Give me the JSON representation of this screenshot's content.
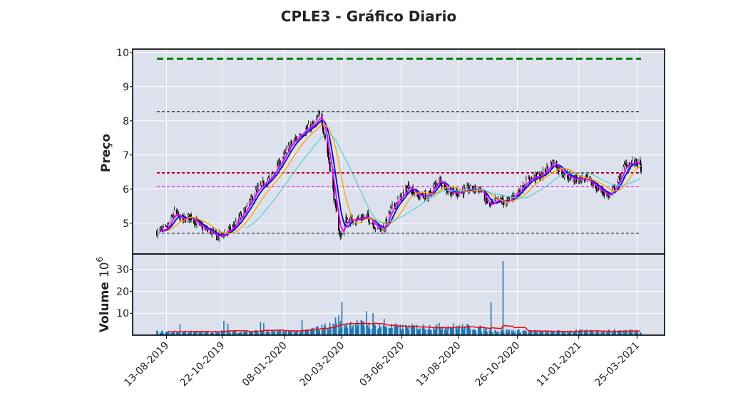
{
  "chart_data": [
    {
      "type": "candlestick",
      "title": "CPLE3 - Gráfico Diario",
      "ylabel": "Preço",
      "ylim": [
        4.1,
        10.1
      ],
      "yticks": [
        5,
        6,
        7,
        8,
        9,
        10
      ],
      "grid": true,
      "x_date_range": [
        "2019-08-01",
        "2021-03-30"
      ],
      "xtick_labels": [
        "13-08-2019",
        "22-10-2019",
        "08-01-2020",
        "20-03-2020",
        "03-06-2020",
        "13-08-2020",
        "26-10-2020",
        "11-01-2021",
        "25-03-2021"
      ],
      "xtick_dates": [
        "2019-08-13",
        "2019-10-22",
        "2020-01-08",
        "2020-03-20",
        "2020-06-03",
        "2020-08-13",
        "2020-10-26",
        "2021-01-11",
        "2021-03-25"
      ],
      "price_path": [
        [
          "2019-08-01",
          4.75
        ],
        [
          "2019-08-13",
          4.85
        ],
        [
          "2019-08-23",
          5.3
        ],
        [
          "2019-09-03",
          5.1
        ],
        [
          "2019-09-12",
          5.2
        ],
        [
          "2019-09-25",
          4.9
        ],
        [
          "2019-10-08",
          4.75
        ],
        [
          "2019-10-15",
          4.6
        ],
        [
          "2019-10-25",
          4.7
        ],
        [
          "2019-11-05",
          4.9
        ],
        [
          "2019-11-20",
          5.4
        ],
        [
          "2019-12-05",
          6.0
        ],
        [
          "2019-12-20",
          6.3
        ],
        [
          "2020-01-03",
          6.8
        ],
        [
          "2020-01-15",
          7.3
        ],
        [
          "2020-02-01",
          7.7
        ],
        [
          "2020-02-14",
          7.9
        ],
        [
          "2020-02-22",
          8.2
        ],
        [
          "2020-02-28",
          7.5
        ],
        [
          "2020-03-06",
          6.5
        ],
        [
          "2020-03-12",
          5.4
        ],
        [
          "2020-03-18",
          4.6
        ],
        [
          "2020-03-25",
          5.1
        ],
        [
          "2020-04-05",
          5.1
        ],
        [
          "2020-04-20",
          5.2
        ],
        [
          "2020-05-01",
          4.9
        ],
        [
          "2020-05-12",
          4.85
        ],
        [
          "2020-05-20",
          5.4
        ],
        [
          "2020-06-03",
          5.8
        ],
        [
          "2020-06-12",
          6.1
        ],
        [
          "2020-06-22",
          5.8
        ],
        [
          "2020-07-06",
          5.8
        ],
        [
          "2020-07-20",
          6.3
        ],
        [
          "2020-08-01",
          5.9
        ],
        [
          "2020-08-13",
          5.9
        ],
        [
          "2020-08-25",
          6.0
        ],
        [
          "2020-09-10",
          6.0
        ],
        [
          "2020-09-20",
          5.5
        ],
        [
          "2020-10-01",
          5.7
        ],
        [
          "2020-10-12",
          5.6
        ],
        [
          "2020-10-26",
          5.9
        ],
        [
          "2020-11-10",
          6.3
        ],
        [
          "2020-11-25",
          6.4
        ],
        [
          "2020-12-10",
          6.8
        ],
        [
          "2020-12-20",
          6.5
        ],
        [
          "2021-01-04",
          6.3
        ],
        [
          "2021-01-20",
          6.3
        ],
        [
          "2021-02-05",
          6.0
        ],
        [
          "2021-02-18",
          5.8
        ],
        [
          "2021-03-01",
          6.2
        ],
        [
          "2021-03-10",
          6.7
        ],
        [
          "2021-03-25",
          6.8
        ],
        [
          "2021-03-30",
          6.6
        ]
      ],
      "series": [
        {
          "color": "#0000ee",
          "lag_days": 12,
          "width": 1.8
        },
        {
          "color": "#ee00ee",
          "lag_days": 6,
          "width": 1.8
        },
        {
          "color": "#ffa500",
          "lag_days": 26,
          "width": 1.4
        },
        {
          "color": "#40d0d0",
          "lag_days": 55,
          "width": 1.1,
          "start": "2019-11-20"
        }
      ],
      "hlines": [
        {
          "y": 9.82,
          "color": "#008000",
          "dash": "dashed-thick"
        },
        {
          "y": 8.27,
          "color": "#000000",
          "dash": "dashed"
        },
        {
          "y": 6.48,
          "color": "#000080",
          "dash": "dashed"
        },
        {
          "y": 6.47,
          "color": "#ff0000",
          "dash": "dashed"
        },
        {
          "y": 6.07,
          "color": "#ee00ee",
          "dash": "dashed"
        },
        {
          "y": 4.71,
          "color": "#000000",
          "dash": "dashed"
        }
      ],
      "background_color": "#dde1ed",
      "up_color": "#ffffff",
      "down_color": "#000000"
    },
    {
      "type": "bar",
      "ylabel": "Volume",
      "yscale_label": "10",
      "yscale_exponent": "6",
      "ylim": [
        0,
        37
      ],
      "yticks": [
        10,
        20,
        30
      ],
      "bar_color": "#1f77b4",
      "volume_base": [
        [
          "2019-08-01",
          1.5
        ],
        [
          "2019-10-01",
          1.5
        ],
        [
          "2019-12-01",
          1.8
        ],
        [
          "2020-02-01",
          1.8
        ],
        [
          "2020-03-01",
          4.0
        ],
        [
          "2020-04-01",
          5.2
        ],
        [
          "2020-05-01",
          4.5
        ],
        [
          "2020-06-01",
          3.5
        ],
        [
          "2020-07-01",
          3.8
        ],
        [
          "2020-08-01",
          4.0
        ],
        [
          "2020-09-01",
          3.5
        ],
        [
          "2020-10-01",
          2.0
        ],
        [
          "2020-11-01",
          2.0
        ],
        [
          "2020-12-01",
          1.5
        ],
        [
          "2021-01-01",
          1.8
        ],
        [
          "2021-03-30",
          2.0
        ]
      ],
      "volume_spikes": [
        [
          "2019-08-30",
          5.0
        ],
        [
          "2019-10-24",
          6.5
        ],
        [
          "2019-10-29",
          5.2
        ],
        [
          "2019-12-09",
          6.0
        ],
        [
          "2019-12-13",
          5.5
        ],
        [
          "2020-01-30",
          7.0
        ],
        [
          "2020-03-12",
          8.0
        ],
        [
          "2020-03-16",
          9.0
        ],
        [
          "2020-03-20",
          15.2
        ],
        [
          "2020-04-20",
          11.0
        ],
        [
          "2020-04-28",
          10.0
        ],
        [
          "2020-05-12",
          7.5
        ],
        [
          "2020-09-23",
          15.0
        ],
        [
          "2020-10-08",
          33.8
        ]
      ],
      "moving_average_color": "#ff0000"
    }
  ]
}
